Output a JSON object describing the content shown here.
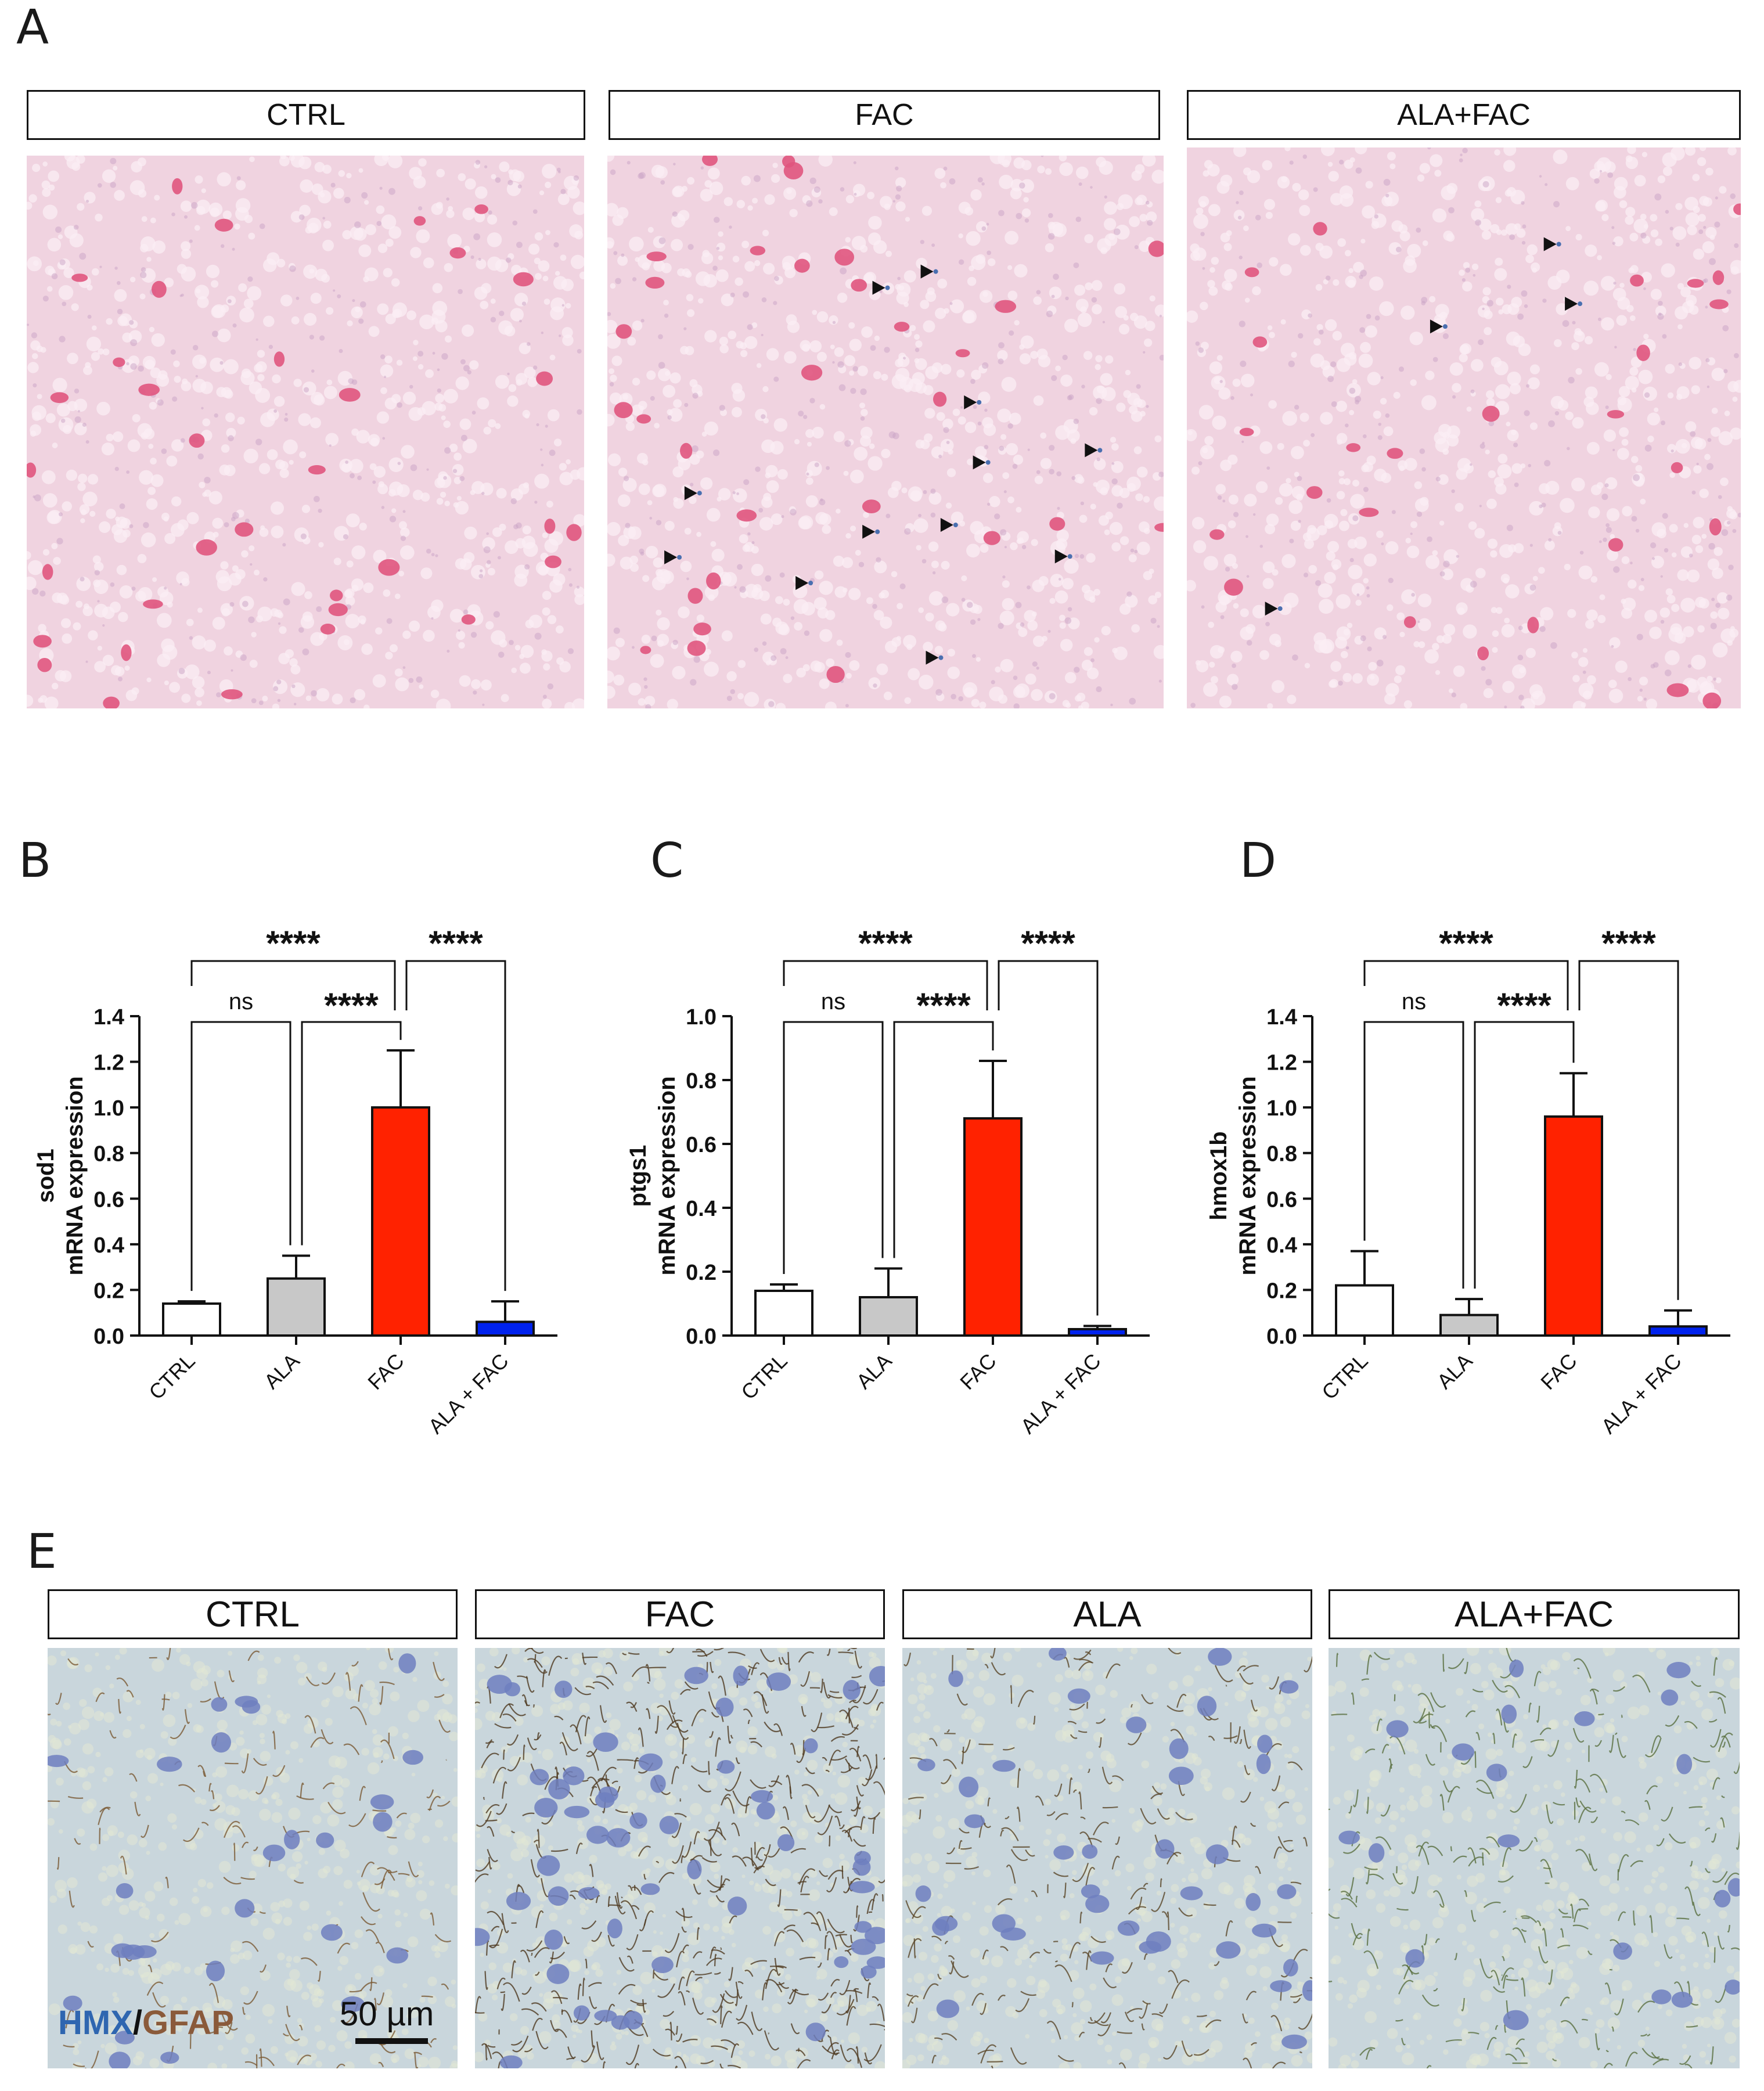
{
  "panel_letters": {
    "A": "A",
    "B": "B",
    "C": "C",
    "D": "D",
    "E": "E"
  },
  "panel_a": {
    "labels": [
      "CTRL",
      "FAC",
      "ALA+FAC"
    ],
    "stain_colors": {
      "background": "#f0d3e0",
      "nuclei": "#e0557e",
      "iron": "#4a6fb0"
    }
  },
  "panel_e": {
    "labels": [
      "CTRL",
      "FAC",
      "ALA",
      "ALA+FAC"
    ],
    "legend_hmx": "HMX",
    "legend_slash": "/",
    "legend_gfap": "GFAP",
    "scale_bar": "50 µm",
    "colors": {
      "hmx": "#2f66b0",
      "gfap": "#8a5a3a",
      "background": "#c9d6dc"
    }
  },
  "chart_data": [
    {
      "type": "bar",
      "panel": "B",
      "ylabel_line1": "sod1",
      "ylabel_line2": "mRNA expression",
      "categories": [
        "CTRL",
        "ALA",
        "FAC",
        "ALA + FAC"
      ],
      "values": [
        0.14,
        0.25,
        1.0,
        0.06
      ],
      "errors": [
        0.01,
        0.1,
        0.25,
        0.09
      ],
      "colors": [
        "#ffffff",
        "#c8c8c8",
        "#ff2200",
        "#0022ee"
      ],
      "ylim": [
        0,
        1.4
      ],
      "yticks": [
        "0.0",
        "0.2",
        "0.4",
        "0.6",
        "0.8",
        "1.0",
        "1.2",
        "1.4"
      ],
      "significance": {
        "ctrl_ala": "ns",
        "ala_fac": "****",
        "ctrl_fac": "****",
        "fac_alafac": "****"
      }
    },
    {
      "type": "bar",
      "panel": "C",
      "ylabel_line1": "ptgs1",
      "ylabel_line2": "mRNA expression",
      "categories": [
        "CTRL",
        "ALA",
        "FAC",
        "ALA + FAC"
      ],
      "values": [
        0.14,
        0.12,
        0.68,
        0.02
      ],
      "errors": [
        0.02,
        0.09,
        0.18,
        0.01
      ],
      "colors": [
        "#ffffff",
        "#c8c8c8",
        "#ff2200",
        "#0022ee"
      ],
      "ylim": [
        0,
        1.0
      ],
      "yticks": [
        "0.0",
        "0.2",
        "0.4",
        "0.6",
        "0.8",
        "1.0"
      ],
      "significance": {
        "ctrl_ala": "ns",
        "ala_fac": "****",
        "ctrl_fac": "****",
        "fac_alafac": "****"
      }
    },
    {
      "type": "bar",
      "panel": "D",
      "ylabel_line1": "hmox1b",
      "ylabel_line2": "mRNA expression",
      "categories": [
        "CTRL",
        "ALA",
        "FAC",
        "ALA + FAC"
      ],
      "values": [
        0.22,
        0.09,
        0.96,
        0.04
      ],
      "errors": [
        0.15,
        0.07,
        0.19,
        0.07
      ],
      "colors": [
        "#ffffff",
        "#c8c8c8",
        "#ff2200",
        "#0022ee"
      ],
      "ylim": [
        0,
        1.4
      ],
      "yticks": [
        "0.0",
        "0.2",
        "0.4",
        "0.6",
        "0.8",
        "1.0",
        "1.2",
        "1.4"
      ],
      "significance": {
        "ctrl_ala": "ns",
        "ala_fac": "****",
        "ctrl_fac": "****",
        "fac_alafac": "****"
      }
    }
  ]
}
